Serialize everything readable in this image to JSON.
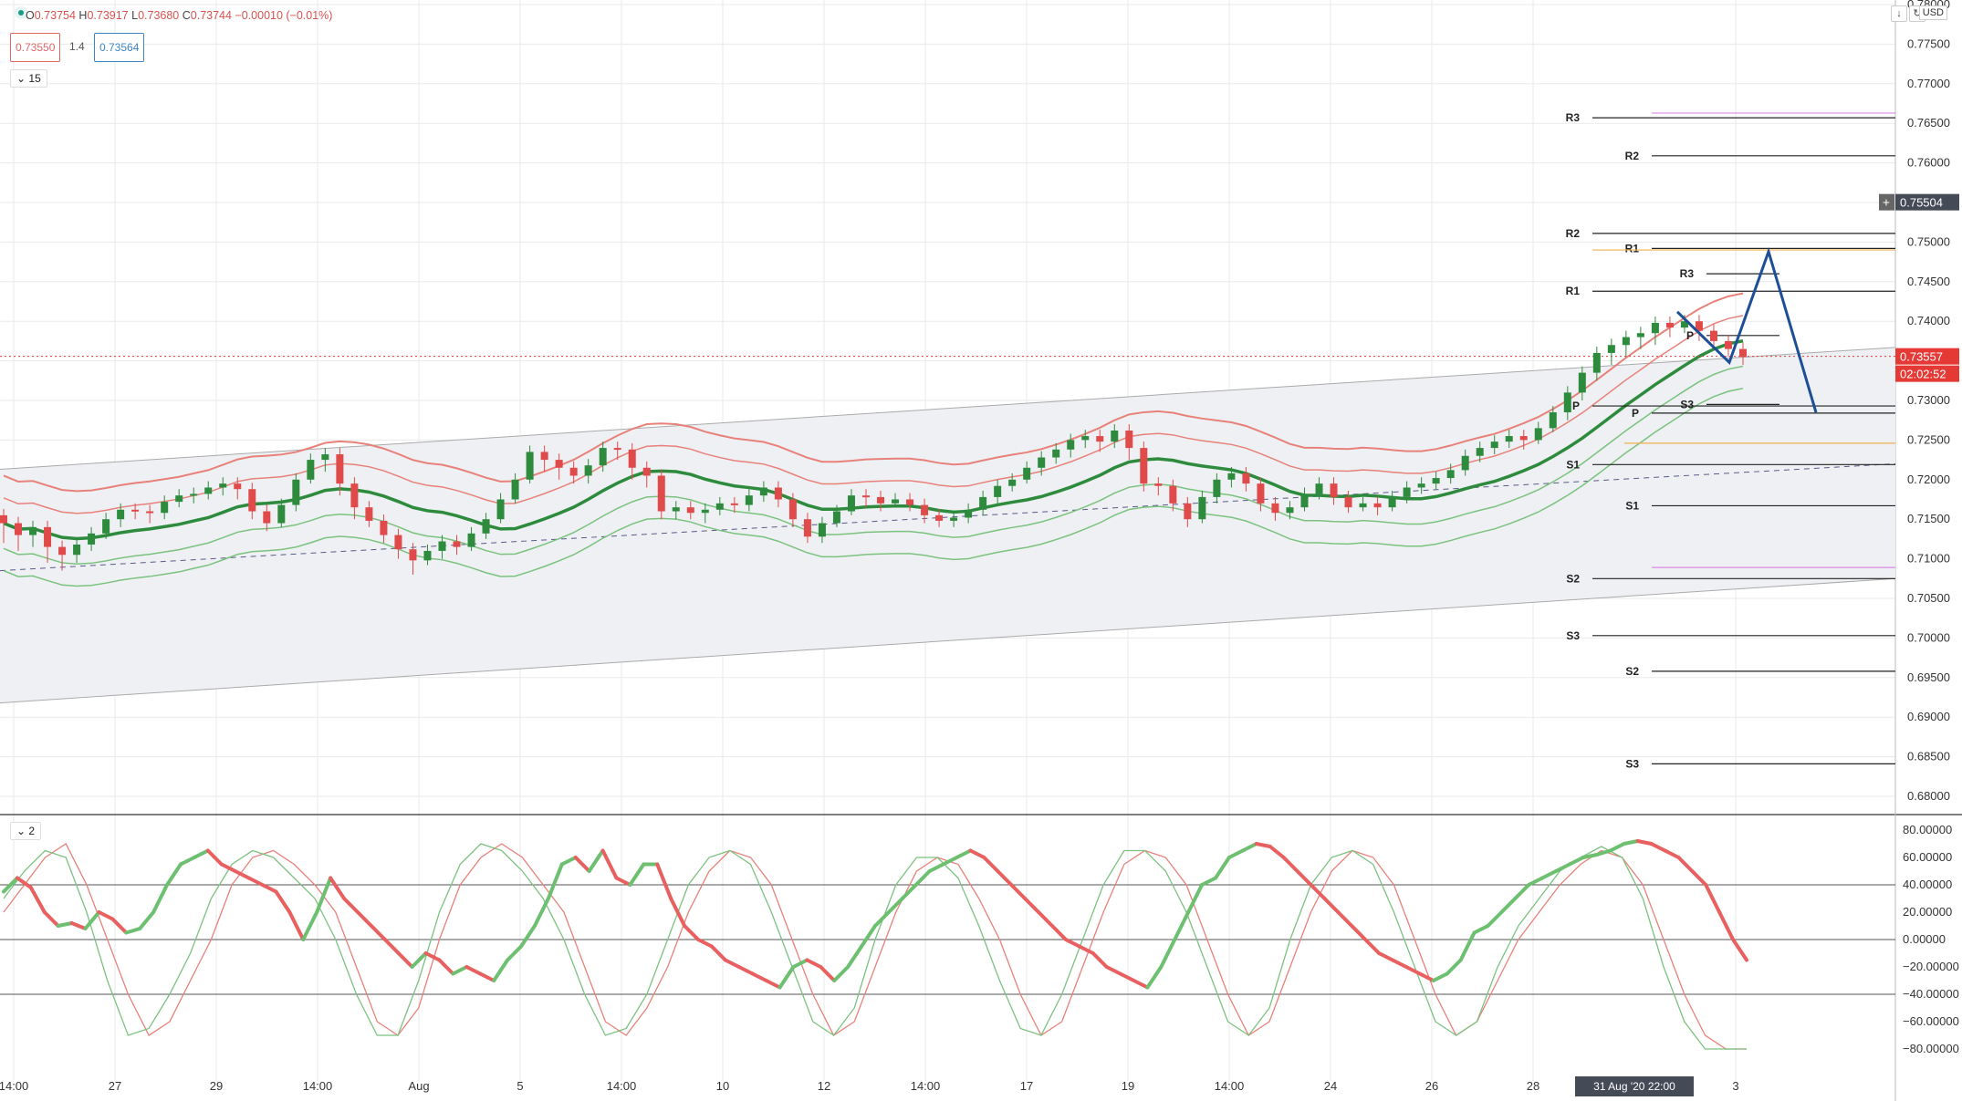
{
  "legend": {
    "open_label": "O",
    "open": "0.73754",
    "high_label": "H",
    "high": "0.73917",
    "low_label": "L",
    "low": "0.73680",
    "close_label": "C",
    "close": "0.73744",
    "change": "−0.00010 (−0.01%)",
    "bid": "0.73550",
    "spread": "1.4",
    "ask": "0.73564",
    "interval_toggle": "15",
    "oscillator_toggle": "2"
  },
  "toolbar": {
    "currency": "USD",
    "download_icon": "download-icon",
    "refresh_icon": "refresh-icon"
  },
  "colors": {
    "up": "#2e8b3e",
    "down": "#e04a4a",
    "band_red": "#e8817a",
    "band_green": "#7cc27f",
    "channel_fill": "#eef0f3",
    "pattern_blue": "#1c4f96",
    "price_tag": "#e53935",
    "crosshair_tag": "#454a57",
    "grid": "#eaeaea",
    "magenta": "#d98ae0",
    "orange": "#f0b050"
  },
  "price_axis": {
    "labels": [
      "0.78000",
      "0.77500",
      "0.77000",
      "0.76500",
      "0.76000",
      "0.75500",
      "0.75000",
      "0.74500",
      "0.74000",
      "0.73500",
      "0.73000",
      "0.72500",
      "0.72000",
      "0.71500",
      "0.71000",
      "0.70500",
      "0.70000",
      "0.69500",
      "0.69000",
      "0.68500",
      "0.68000"
    ],
    "values": [
      0.78,
      0.775,
      0.77,
      0.765,
      0.76,
      0.755,
      0.75,
      0.745,
      0.74,
      0.735,
      0.73,
      0.725,
      0.72,
      0.715,
      0.71,
      0.705,
      0.7,
      0.695,
      0.69,
      0.685,
      0.68
    ],
    "current_price": "0.73557",
    "current_price_value": 0.73557,
    "countdown": "02:02:52",
    "crosshair_price": "0.75504",
    "crosshair_value": 0.75504
  },
  "osc_axis": {
    "labels": [
      "80.00000",
      "60.00000",
      "40.00000",
      "20.00000",
      "0.00000",
      "−20.00000",
      "−40.00000",
      "−60.00000",
      "−80.00000"
    ],
    "values": [
      80,
      60,
      40,
      20,
      0,
      -20,
      -40,
      -60,
      -80
    ]
  },
  "time_axis": {
    "labels": [
      "14:00",
      "27",
      "29",
      "14:00",
      "Aug",
      "5",
      "14:00",
      "10",
      "12",
      "14:00",
      "17",
      "19",
      "14:00",
      "24",
      "26",
      "28",
      "3"
    ],
    "positions": [
      0,
      1,
      2,
      3,
      4,
      5,
      6,
      7,
      8,
      9,
      10,
      11,
      12,
      13,
      14,
      15,
      17
    ],
    "crosshair_label": "31 Aug '20   22:00",
    "crosshair_position": 16
  },
  "pivots": [
    {
      "label": "R3",
      "price": 0.7657,
      "set": "A"
    },
    {
      "label": "R2",
      "price": 0.7511,
      "set": "A"
    },
    {
      "label": "R1",
      "price": 0.7438,
      "set": "A"
    },
    {
      "label": "P",
      "price": 0.7293,
      "set": "A"
    },
    {
      "label": "S1",
      "price": 0.7219,
      "set": "A"
    },
    {
      "label": "S2",
      "price": 0.7075,
      "set": "A"
    },
    {
      "label": "S3",
      "price": 0.7003,
      "set": "A"
    },
    {
      "label": "R2",
      "price": 0.7609,
      "set": "B"
    },
    {
      "label": "R1",
      "price": 0.7492,
      "set": "B"
    },
    {
      "label": "P",
      "price": 0.7284,
      "set": "B"
    },
    {
      "label": "S1",
      "price": 0.7167,
      "set": "B"
    },
    {
      "label": "S2",
      "price": 0.6958,
      "set": "B"
    },
    {
      "label": "S3",
      "price": 0.6841,
      "set": "B"
    },
    {
      "label": "R3",
      "price": 0.746,
      "set": "C"
    },
    {
      "label": "P",
      "price": 0.7382,
      "set": "C"
    },
    {
      "label": "S3",
      "price": 0.7295,
      "set": "C"
    }
  ],
  "chart_data": {
    "type": "candlestick",
    "title": "",
    "y_range": [
      0.678,
      0.78
    ],
    "candles": [
      [
        0.7155,
        0.7145,
        0.712
      ],
      [
        0.7145,
        0.713,
        0.711
      ],
      [
        0.713,
        0.714,
        0.7115
      ],
      [
        0.714,
        0.7115,
        0.7095
      ],
      [
        0.7115,
        0.7105,
        0.7085
      ],
      [
        0.7105,
        0.7118,
        0.7095
      ],
      [
        0.7118,
        0.7132,
        0.711
      ],
      [
        0.7132,
        0.715,
        0.7125
      ],
      [
        0.715,
        0.7162,
        0.714
      ],
      [
        0.7162,
        0.716,
        0.715
      ],
      [
        0.716,
        0.7158,
        0.7145
      ],
      [
        0.7158,
        0.7172,
        0.715
      ],
      [
        0.7172,
        0.718,
        0.7165
      ],
      [
        0.718,
        0.7182,
        0.717
      ],
      [
        0.7182,
        0.719,
        0.7175
      ],
      [
        0.719,
        0.7195,
        0.718
      ],
      [
        0.7195,
        0.7188,
        0.7175
      ],
      [
        0.7188,
        0.716,
        0.715
      ],
      [
        0.716,
        0.7145,
        0.7135
      ],
      [
        0.7145,
        0.7168,
        0.714
      ],
      [
        0.7168,
        0.72,
        0.716
      ],
      [
        0.72,
        0.7225,
        0.7195
      ],
      [
        0.7225,
        0.7232,
        0.721
      ],
      [
        0.7232,
        0.7195,
        0.718
      ],
      [
        0.7195,
        0.7165,
        0.715
      ],
      [
        0.7165,
        0.7148,
        0.714
      ],
      [
        0.7148,
        0.713,
        0.712
      ],
      [
        0.713,
        0.7112,
        0.71
      ],
      [
        0.7112,
        0.7098,
        0.708
      ],
      [
        0.7098,
        0.711,
        0.7092
      ],
      [
        0.711,
        0.7122,
        0.71
      ],
      [
        0.7122,
        0.7115,
        0.7105
      ],
      [
        0.7115,
        0.7132,
        0.711
      ],
      [
        0.7132,
        0.715,
        0.7125
      ],
      [
        0.715,
        0.7175,
        0.7145
      ],
      [
        0.7175,
        0.72,
        0.717
      ],
      [
        0.72,
        0.7235,
        0.7195
      ],
      [
        0.7235,
        0.7225,
        0.721
      ],
      [
        0.7225,
        0.7215,
        0.72
      ],
      [
        0.7215,
        0.7205,
        0.7195
      ],
      [
        0.7205,
        0.7218,
        0.7195
      ],
      [
        0.7218,
        0.724,
        0.721
      ],
      [
        0.724,
        0.7238,
        0.7225
      ],
      [
        0.7238,
        0.7215,
        0.72
      ],
      [
        0.7215,
        0.7205,
        0.719
      ],
      [
        0.7205,
        0.716,
        0.715
      ],
      [
        0.716,
        0.7165,
        0.715
      ],
      [
        0.7165,
        0.7158,
        0.715
      ],
      [
        0.7158,
        0.7162,
        0.7145
      ],
      [
        0.7162,
        0.717,
        0.7155
      ],
      [
        0.717,
        0.7168,
        0.7158
      ],
      [
        0.7168,
        0.718,
        0.716
      ],
      [
        0.718,
        0.719,
        0.7172
      ],
      [
        0.719,
        0.7175,
        0.7165
      ],
      [
        0.7175,
        0.715,
        0.714
      ],
      [
        0.715,
        0.7128,
        0.712
      ],
      [
        0.7128,
        0.7145,
        0.712
      ],
      [
        0.7145,
        0.716,
        0.714
      ],
      [
        0.716,
        0.718,
        0.7155
      ],
      [
        0.718,
        0.7178,
        0.7165
      ],
      [
        0.7178,
        0.717,
        0.716
      ],
      [
        0.717,
        0.7175,
        0.7165
      ],
      [
        0.7175,
        0.7168,
        0.716
      ],
      [
        0.7168,
        0.7155,
        0.7145
      ],
      [
        0.7155,
        0.7148,
        0.714
      ],
      [
        0.7148,
        0.7152,
        0.714
      ],
      [
        0.7152,
        0.7162,
        0.7145
      ],
      [
        0.7162,
        0.7178,
        0.7155
      ],
      [
        0.7178,
        0.7192,
        0.717
      ],
      [
        0.7192,
        0.72,
        0.7185
      ],
      [
        0.72,
        0.7215,
        0.7195
      ],
      [
        0.7215,
        0.7228,
        0.7205
      ],
      [
        0.7228,
        0.7238,
        0.722
      ],
      [
        0.7238,
        0.725,
        0.7228
      ],
      [
        0.725,
        0.7255,
        0.724
      ],
      [
        0.7255,
        0.7248,
        0.7235
      ],
      [
        0.7248,
        0.7262,
        0.724
      ],
      [
        0.7262,
        0.724,
        0.7225
      ],
      [
        0.724,
        0.7195,
        0.7185
      ],
      [
        0.7195,
        0.7192,
        0.718
      ],
      [
        0.7192,
        0.717,
        0.716
      ],
      [
        0.717,
        0.715,
        0.714
      ],
      [
        0.715,
        0.7178,
        0.7145
      ],
      [
        0.7178,
        0.72,
        0.717
      ],
      [
        0.72,
        0.7208,
        0.719
      ],
      [
        0.7208,
        0.7195,
        0.7185
      ],
      [
        0.7195,
        0.717,
        0.716
      ],
      [
        0.717,
        0.7158,
        0.7148
      ],
      [
        0.7158,
        0.7165,
        0.715
      ],
      [
        0.7165,
        0.7182,
        0.716
      ],
      [
        0.7182,
        0.7195,
        0.7175
      ],
      [
        0.7195,
        0.7178,
        0.7168
      ],
      [
        0.7178,
        0.7165,
        0.7158
      ],
      [
        0.7165,
        0.717,
        0.716
      ],
      [
        0.717,
        0.7165,
        0.7155
      ],
      [
        0.7165,
        0.7178,
        0.716
      ],
      [
        0.7178,
        0.719,
        0.717
      ],
      [
        0.719,
        0.7195,
        0.7182
      ],
      [
        0.7195,
        0.7202,
        0.7188
      ],
      [
        0.7202,
        0.7212,
        0.7195
      ],
      [
        0.7212,
        0.723,
        0.7205
      ],
      [
        0.723,
        0.724,
        0.7222
      ],
      [
        0.724,
        0.7248,
        0.7232
      ],
      [
        0.7248,
        0.7255,
        0.724
      ],
      [
        0.7255,
        0.725,
        0.7238
      ],
      [
        0.725,
        0.7265,
        0.7245
      ],
      [
        0.7265,
        0.7285,
        0.726
      ],
      [
        0.7285,
        0.731,
        0.7275
      ],
      [
        0.731,
        0.7335,
        0.73
      ],
      [
        0.7335,
        0.736,
        0.7325
      ],
      [
        0.736,
        0.737,
        0.7345
      ],
      [
        0.737,
        0.738,
        0.7355
      ],
      [
        0.738,
        0.7385,
        0.7365
      ],
      [
        0.7385,
        0.7398,
        0.737
      ],
      [
        0.7398,
        0.7392,
        0.738
      ],
      [
        0.7392,
        0.74,
        0.7385
      ],
      [
        0.74,
        0.7388,
        0.7375
      ],
      [
        0.7388,
        0.7375,
        0.7365
      ],
      [
        0.7375,
        0.7365,
        0.7355
      ],
      [
        0.7365,
        0.7355,
        0.7345
      ]
    ],
    "pattern_projection": [
      0.7412,
      0.7348,
      0.7488,
      0.7285
    ]
  },
  "oscillator": {
    "fast": [
      35,
      45,
      38,
      20,
      10,
      12,
      8,
      20,
      15,
      5,
      8,
      20,
      40,
      55,
      60,
      65,
      55,
      50,
      45,
      40,
      35,
      20,
      0,
      20,
      45,
      30,
      20,
      10,
      0,
      -10,
      -20,
      -10,
      -15,
      -25,
      -20,
      -25,
      -30,
      -15,
      -5,
      10,
      30,
      55,
      60,
      50,
      65,
      45,
      40,
      55,
      55,
      30,
      10,
      0,
      -5,
      -15,
      -20,
      -25,
      -30,
      -35,
      -20,
      -15,
      -20,
      -30,
      -20,
      -5,
      10,
      20,
      30,
      40,
      50,
      55,
      60,
      65,
      60,
      50,
      40,
      30,
      20,
      10,
      0,
      -5,
      -10,
      -20,
      -25,
      -30,
      -35,
      -20,
      0,
      20,
      40,
      45,
      60,
      65,
      70,
      68,
      60,
      50,
      40,
      30,
      20,
      10,
      0,
      -10,
      -15,
      -20,
      -25,
      -30,
      -25,
      -15,
      5,
      10,
      20,
      30,
      40,
      45,
      50,
      55,
      60,
      62,
      65,
      70,
      72,
      70,
      65,
      60,
      50,
      40,
      20,
      0,
      -15
    ],
    "slow_red": [
      20,
      40,
      60,
      70,
      40,
      0,
      -40,
      -70,
      -60,
      -30,
      0,
      40,
      60,
      65,
      55,
      40,
      20,
      -20,
      -60,
      -70,
      -50,
      0,
      40,
      60,
      70,
      60,
      40,
      20,
      -20,
      -60,
      -70,
      -50,
      -20,
      20,
      50,
      65,
      60,
      40,
      0,
      -40,
      -70,
      -60,
      -20,
      20,
      50,
      60,
      55,
      30,
      0,
      -40,
      -70,
      -60,
      -20,
      20,
      55,
      65,
      60,
      40,
      0,
      -40,
      -70,
      -60,
      -20,
      20,
      50,
      65,
      60,
      40,
      0,
      -40,
      -70,
      -60,
      -30,
      0,
      20,
      40,
      55,
      65,
      60,
      40,
      0,
      -40,
      -70,
      -80,
      -80
    ],
    "slow_green": [
      30,
      50,
      65,
      60,
      20,
      -30,
      -70,
      -65,
      -40,
      -10,
      30,
      55,
      65,
      60,
      45,
      30,
      0,
      -40,
      -70,
      -70,
      -30,
      20,
      55,
      70,
      65,
      50,
      30,
      0,
      -40,
      -70,
      -65,
      -40,
      0,
      40,
      60,
      65,
      55,
      20,
      -20,
      -60,
      -70,
      -50,
      0,
      40,
      60,
      60,
      45,
      10,
      -30,
      -65,
      -70,
      -40,
      0,
      40,
      65,
      65,
      50,
      20,
      -20,
      -60,
      -70,
      -50,
      0,
      40,
      60,
      65,
      55,
      20,
      -20,
      -60,
      -70,
      -60,
      -20,
      10,
      30,
      50,
      60,
      68,
      60,
      30,
      -20,
      -60,
      -80,
      -80,
      -80
    ]
  }
}
